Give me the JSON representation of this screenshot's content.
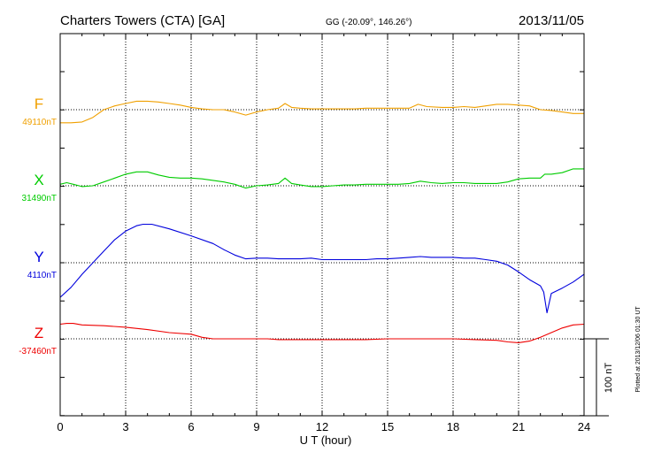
{
  "chart_data": {
    "type": "line",
    "title": {
      "station": "Charters Towers (CTA)  [GA]",
      "coords": "GG (-20.09°, 146.26°)",
      "date": "2013/11/05"
    },
    "xlabel": "U T (hour)",
    "xlim": [
      0,
      24
    ],
    "xticks": [
      "0",
      "3",
      "6",
      "9",
      "12",
      "15",
      "18",
      "21",
      "24"
    ],
    "scale_label": "100 nT",
    "plotted_note": "Plotted at 2013/12/06 01:30 UT",
    "series": [
      {
        "name": "F",
        "baseline_label": "49110nT",
        "color": "#f0a000",
        "baseline_nT": 49110,
        "points": [
          [
            0,
            -17
          ],
          [
            0.5,
            -17
          ],
          [
            1,
            -16
          ],
          [
            1.5,
            -10
          ],
          [
            2,
            0
          ],
          [
            2.5,
            5
          ],
          [
            3,
            8
          ],
          [
            3.5,
            11
          ],
          [
            4,
            11
          ],
          [
            4.5,
            10
          ],
          [
            5,
            8
          ],
          [
            5.5,
            6
          ],
          [
            6,
            3
          ],
          [
            6.5,
            1
          ],
          [
            7,
            0
          ],
          [
            7.5,
            0
          ],
          [
            8,
            -3
          ],
          [
            8.5,
            -7
          ],
          [
            9,
            -3
          ],
          [
            9.5,
            0
          ],
          [
            10,
            2
          ],
          [
            10.3,
            8
          ],
          [
            10.6,
            3
          ],
          [
            11,
            2
          ],
          [
            11.5,
            1
          ],
          [
            12,
            1
          ],
          [
            12.5,
            1
          ],
          [
            13,
            1
          ],
          [
            13.5,
            1
          ],
          [
            14,
            2
          ],
          [
            14.5,
            2
          ],
          [
            15,
            2
          ],
          [
            15.5,
            2
          ],
          [
            16,
            2
          ],
          [
            16.4,
            7
          ],
          [
            16.8,
            4
          ],
          [
            17.5,
            3
          ],
          [
            18,
            3
          ],
          [
            18.5,
            4
          ],
          [
            19,
            3
          ],
          [
            19.5,
            5
          ],
          [
            20,
            7
          ],
          [
            20.5,
            7
          ],
          [
            21,
            6
          ],
          [
            21.5,
            5
          ],
          [
            22,
            0
          ],
          [
            22.5,
            -1
          ],
          [
            23,
            -3
          ],
          [
            23.5,
            -5
          ],
          [
            24,
            -5
          ]
        ]
      },
      {
        "name": "X",
        "baseline_label": "31490nT",
        "color": "#00cc00",
        "baseline_nT": 31490,
        "points": [
          [
            0,
            2
          ],
          [
            0.3,
            4
          ],
          [
            0.6,
            2
          ],
          [
            1,
            -1
          ],
          [
            1.5,
            0
          ],
          [
            2,
            5
          ],
          [
            2.5,
            10
          ],
          [
            3,
            15
          ],
          [
            3.5,
            18
          ],
          [
            4,
            18
          ],
          [
            4.5,
            14
          ],
          [
            5,
            11
          ],
          [
            5.5,
            10
          ],
          [
            6,
            10
          ],
          [
            6.5,
            9
          ],
          [
            7,
            7
          ],
          [
            7.5,
            5
          ],
          [
            8,
            2
          ],
          [
            8.5,
            -3
          ],
          [
            9,
            0
          ],
          [
            9.5,
            1
          ],
          [
            10,
            3
          ],
          [
            10.3,
            10
          ],
          [
            10.6,
            3
          ],
          [
            11,
            1
          ],
          [
            11.5,
            -1
          ],
          [
            12,
            -1
          ],
          [
            12.5,
            0
          ],
          [
            13,
            1
          ],
          [
            13.5,
            1
          ],
          [
            14,
            2
          ],
          [
            14.5,
            2
          ],
          [
            15,
            2
          ],
          [
            15.5,
            2
          ],
          [
            16,
            3
          ],
          [
            16.5,
            6
          ],
          [
            17,
            4
          ],
          [
            17.5,
            3
          ],
          [
            18,
            4
          ],
          [
            18.5,
            4
          ],
          [
            19,
            3
          ],
          [
            19.5,
            3
          ],
          [
            20,
            3
          ],
          [
            20.5,
            5
          ],
          [
            21,
            9
          ],
          [
            21.5,
            10
          ],
          [
            22,
            10
          ],
          [
            22.2,
            15
          ],
          [
            22.5,
            15
          ],
          [
            23,
            17
          ],
          [
            23.5,
            22
          ],
          [
            24,
            22
          ]
        ]
      },
      {
        "name": "Y",
        "baseline_label": "4110nT",
        "color": "#0000dd",
        "baseline_nT": 4110,
        "points": [
          [
            0,
            -45
          ],
          [
            0.5,
            -32
          ],
          [
            1,
            -15
          ],
          [
            1.5,
            0
          ],
          [
            2,
            15
          ],
          [
            2.5,
            30
          ],
          [
            3,
            41
          ],
          [
            3.5,
            48
          ],
          [
            3.8,
            50
          ],
          [
            4.2,
            50
          ],
          [
            5,
            44
          ],
          [
            6,
            35
          ],
          [
            7,
            25
          ],
          [
            7.5,
            17
          ],
          [
            8,
            10
          ],
          [
            8.5,
            5
          ],
          [
            9,
            6
          ],
          [
            9.5,
            6
          ],
          [
            10,
            5
          ],
          [
            10.5,
            5
          ],
          [
            11,
            5
          ],
          [
            11.5,
            6
          ],
          [
            12,
            4
          ],
          [
            13,
            4
          ],
          [
            14,
            4
          ],
          [
            14.5,
            5
          ],
          [
            15,
            5
          ],
          [
            15.5,
            6
          ],
          [
            16,
            7
          ],
          [
            16.5,
            8
          ],
          [
            17,
            7
          ],
          [
            17.5,
            7
          ],
          [
            18,
            7
          ],
          [
            18.5,
            6
          ],
          [
            19,
            6
          ],
          [
            19.5,
            4
          ],
          [
            20,
            2
          ],
          [
            20.5,
            -3
          ],
          [
            21,
            -12
          ],
          [
            21.5,
            -22
          ],
          [
            22,
            -30
          ],
          [
            22.15,
            -38
          ],
          [
            22.3,
            -65
          ],
          [
            22.5,
            -40
          ],
          [
            23,
            -33
          ],
          [
            23.5,
            -25
          ],
          [
            24,
            -15
          ]
        ]
      },
      {
        "name": "Z",
        "baseline_label": "-37460nT",
        "color": "#ee0000",
        "baseline_nT": -37460,
        "points": [
          [
            0,
            19
          ],
          [
            0.3,
            20
          ],
          [
            0.6,
            20
          ],
          [
            1,
            18
          ],
          [
            2,
            17
          ],
          [
            3,
            15
          ],
          [
            4,
            12
          ],
          [
            5,
            8
          ],
          [
            6,
            6
          ],
          [
            6.5,
            2
          ],
          [
            7,
            0
          ],
          [
            8,
            0
          ],
          [
            9,
            0
          ],
          [
            9.5,
            0
          ],
          [
            10,
            -1
          ],
          [
            11,
            -1
          ],
          [
            12,
            -1
          ],
          [
            13,
            -1
          ],
          [
            14,
            -1
          ],
          [
            15,
            0
          ],
          [
            16,
            0
          ],
          [
            17,
            0
          ],
          [
            18,
            0
          ],
          [
            19,
            -1
          ],
          [
            20,
            -2
          ],
          [
            20.5,
            -4
          ],
          [
            21,
            -5
          ],
          [
            21.5,
            -3
          ],
          [
            22,
            2
          ],
          [
            22.5,
            8
          ],
          [
            23,
            14
          ],
          [
            23.5,
            18
          ],
          [
            24,
            19
          ]
        ]
      }
    ]
  }
}
